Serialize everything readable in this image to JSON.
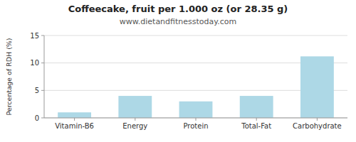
{
  "chart_data": {
    "type": "bar",
    "title": "Coffeecake, fruit per 1.000 oz (or 28.35 g)",
    "subtitle": "www.dietandfitnesstoday.com",
    "categories": [
      "Vitamin-B6",
      "Energy",
      "Protein",
      "Total-Fat",
      "Carbohydrate"
    ],
    "values": [
      1.0,
      4.0,
      3.0,
      4.0,
      11.2
    ],
    "color": "#add8e6",
    "ylabel": "Percentage of RDH (%)",
    "ylim": [
      0,
      15
    ],
    "yticks": [
      0,
      5,
      10,
      15
    ],
    "grid": true
  }
}
